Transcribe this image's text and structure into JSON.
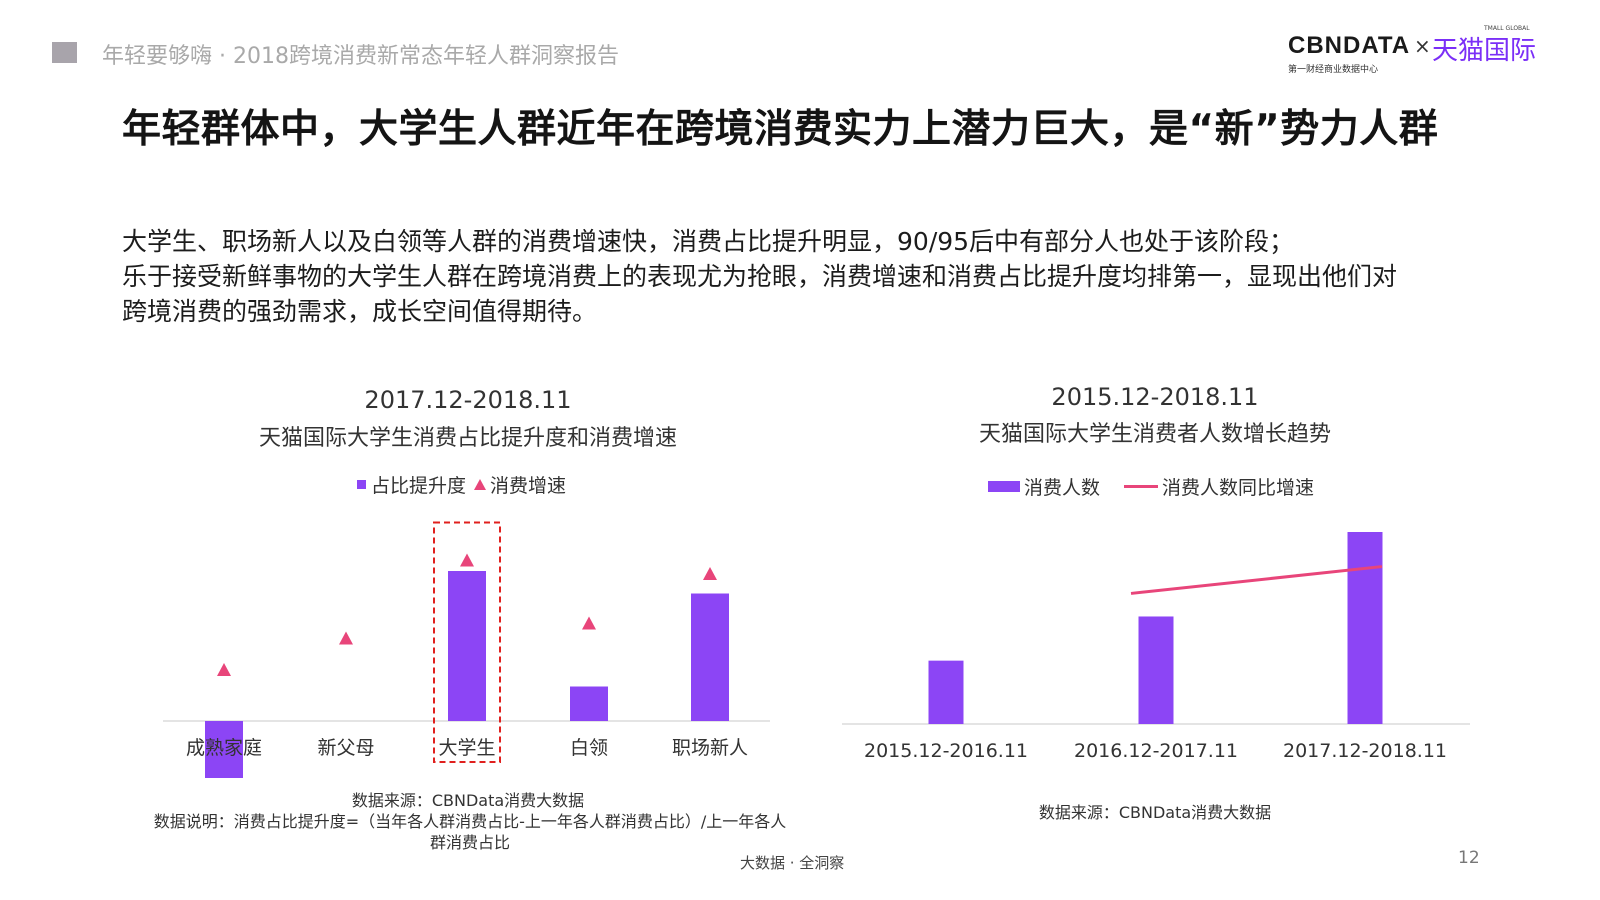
{
  "header": {
    "report_title": "年轻要够嗨 · 2018跨境消费新常态年轻人群洞察报告",
    "logo_cbndata": "CBNDATA",
    "logo_cbndata_sub": "第一财经商业数据中心",
    "logo_separator": "×",
    "logo_tmall": "天猫国际",
    "logo_tmall_sub": "TMALL GLOBAL"
  },
  "main_title": "年轻群体中，大学生人群近年在跨境消费实力上潜力巨大，是“新”势力人群",
  "description": [
    "大学生、职场新人以及白领等人群的消费增速快，消费占比提升明显，90/95后中有部分人也处于该阶段；",
    "乐于接受新鲜事物的大学生人群在跨境消费上的表现尤为抢眼，消费增速和消费占比提升度均排第一，显现出他们对",
    "跨境消费的强劲需求，成长空间值得期待。"
  ],
  "colors": {
    "bar": "#8c45f5",
    "marker": "#e8457a",
    "highlight_box": "#e0201e"
  },
  "chart_data": [
    {
      "type": "bar",
      "title": "2017.12-2018.11",
      "subtitle": "天猫国际大学生消费占比提升度和消费增速",
      "categories": [
        "成熟家庭",
        "新父母",
        "大学生",
        "白领",
        "职场新人"
      ],
      "series": [
        {
          "name": "占比提升度",
          "type": "bar",
          "values": [
            -0.38,
            0.0,
            1.0,
            0.23,
            0.85
          ]
        },
        {
          "name": "消费增速",
          "type": "marker",
          "values": [
            0.34,
            0.55,
            1.07,
            0.65,
            0.98
          ]
        }
      ],
      "highlight": "大学生",
      "ylim": [
        -0.45,
        1.3
      ],
      "source": "数据来源：CBNData消费大数据",
      "note": "数据说明：消费占比提升度=（当年各人群消费占比-上一年各人群消费占比）/上一年各人群消费占比"
    },
    {
      "type": "bar",
      "title": "2015.12-2018.11",
      "subtitle": "天猫国际大学生消费者人数增长趋势",
      "categories": [
        "2015.12-2016.11",
        "2016.12-2017.11",
        "2017.12-2018.11"
      ],
      "series": [
        {
          "name": "消费人数",
          "type": "bar",
          "values": [
            0.33,
            0.56,
            1.0
          ]
        },
        {
          "name": "消费人数同比增速",
          "type": "line",
          "values": [
            null,
            0.68,
            0.82
          ]
        }
      ],
      "ylim": [
        0,
        1.1
      ],
      "source": "数据来源：CBNData消费大数据"
    }
  ],
  "footer": {
    "slogan": "大数据 · 全洞察",
    "page_number": "12"
  }
}
